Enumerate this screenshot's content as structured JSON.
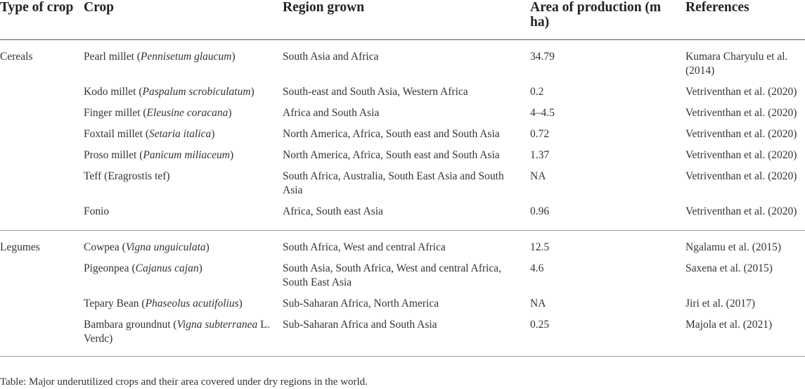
{
  "headers": {
    "type": "Type of crop",
    "crop": "Crop",
    "region": "Region grown",
    "area": "Area of production (m ha)",
    "references": "References"
  },
  "groups": [
    {
      "type": "Cereals",
      "rows": [
        {
          "crop_name": "Pearl millet (",
          "crop_latin": "Pennisetum glaucum",
          "crop_tail": ")",
          "region": "South Asia and Africa",
          "area": "34.79",
          "ref": "Kumara Charyulu et al. (2014)"
        },
        {
          "crop_name": "Kodo millet (",
          "crop_latin": "Paspalum scrobiculatum",
          "crop_tail": ")",
          "region": "South-east and South Asia, Western Africa",
          "area": "0.2",
          "ref": "Vetriventhan et al. (2020)"
        },
        {
          "crop_name": "Finger millet (",
          "crop_latin": "Eleusine coracana",
          "crop_tail": ")",
          "region": "Africa and South Asia",
          "area": "4–4.5",
          "ref": "Vetriventhan et al. (2020)"
        },
        {
          "crop_name": "Foxtail millet (",
          "crop_latin": "Setaria italica",
          "crop_tail": ")",
          "region": "North America, Africa, South east and South Asia",
          "area": "0.72",
          "ref": "Vetriventhan et al. (2020)"
        },
        {
          "crop_name": "Proso millet (",
          "crop_latin": "Panicum miliaceum",
          "crop_tail": ")",
          "region": "North America, Africa, South east and South Asia",
          "area": "1.37",
          "ref": "Vetriventhan et al. (2020)"
        },
        {
          "crop_name": "Teff (Eragrostis tef)",
          "crop_latin": "",
          "crop_tail": "",
          "region": "South Africa, Australia, South East Asia and South Asia",
          "area": "NA",
          "ref": "Vetriventhan et al. (2020)"
        },
        {
          "crop_name": "Fonio",
          "crop_latin": "",
          "crop_tail": "",
          "region": "Africa, South east Asia",
          "area": "0.96",
          "ref": "Vetriventhan et al. (2020)"
        }
      ]
    },
    {
      "type": "Legumes",
      "rows": [
        {
          "crop_name": "Cowpea (",
          "crop_latin": "Vigna unguiculata",
          "crop_tail": ")",
          "region": "South Africa, West and central Africa",
          "area": "12.5",
          "ref": "Ngalamu et al. (2015)"
        },
        {
          "crop_name": "Pigeonpea (",
          "crop_latin": "Cajanus cajan",
          "crop_tail": ")",
          "region": "South Asia, South Africa, West and central Africa, South East Asia",
          "area": "4.6",
          "ref": "Saxena et al. (2015)"
        },
        {
          "crop_name": "Tepary Bean (",
          "crop_latin": "Phaseolus acutifolius",
          "crop_tail": ")",
          "region": "Sub-Saharan Africa, North America",
          "area": "NA",
          "ref": "Jiri et al. (2017)"
        },
        {
          "crop_name": "Bambara groundnut (",
          "crop_latin": "Vigna subterranea",
          "crop_tail": " L. Verdc)",
          "region": "Sub-Saharan Africa and South Asia",
          "area": "0.25",
          "ref": "Majola et al. (2021)"
        }
      ]
    }
  ],
  "caption": "Table: Major underutilized crops and their area covered under dry regions in the world."
}
